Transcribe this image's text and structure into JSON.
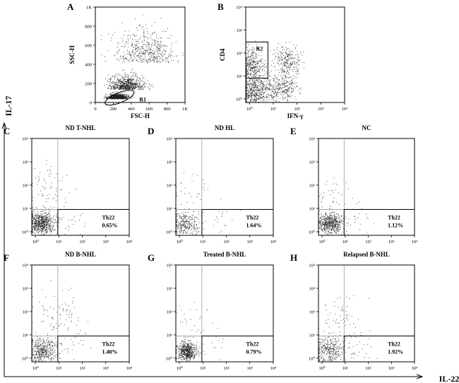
{
  "figure": {
    "outer_y_axis_label": "IL-17",
    "outer_x_axis_label": "IL-22"
  },
  "chart_data": [
    {
      "id": "A",
      "panel_letter": "A",
      "type": "scatter",
      "title": "",
      "xlabel": "FSC-H",
      "ylabel": "SSC-H",
      "xlim": [
        0,
        1000
      ],
      "ylim": [
        0,
        1000
      ],
      "scale": "linear",
      "x_ticks": [
        "0",
        "200",
        "400",
        "600",
        "800",
        "1K"
      ],
      "y_ticks": [
        "0",
        "200",
        "400",
        "600",
        "800",
        "1K"
      ],
      "gates": [
        {
          "label": "R1",
          "shape": "ellipse",
          "center": [
            270,
            50
          ]
        }
      ],
      "point_clusters": [
        {
          "center": [
            250,
            45
          ],
          "spread": [
            90,
            40
          ],
          "count": 900
        },
        {
          "center": [
            350,
            150
          ],
          "spread": [
            160,
            110
          ],
          "count": 700
        },
        {
          "center": [
            550,
            450
          ],
          "spread": [
            300,
            300
          ],
          "count": 500
        }
      ]
    },
    {
      "id": "B",
      "panel_letter": "B",
      "type": "scatter",
      "title": "",
      "xlabel": "IFN-γ",
      "ylabel": "CD4",
      "xlim": [
        0.7,
        10000
      ],
      "ylim": [
        0.7,
        10000
      ],
      "scale": "log",
      "x_ticks": [
        "10⁰",
        "10¹",
        "10²",
        "10³",
        "10⁴"
      ],
      "y_ticks": [
        "10⁰",
        "10¹",
        "10²",
        "10³",
        "10⁴"
      ],
      "gates": [
        {
          "label": "R2",
          "shape": "rect",
          "x": [
            0.7,
            6
          ],
          "y": [
            8,
            300
          ]
        }
      ],
      "point_clusters": [
        {
          "center": [
            1.3,
            25
          ],
          "spread": [
            0.25,
            0.4
          ],
          "count": 400
        },
        {
          "center": [
            1.5,
            2
          ],
          "spread": [
            0.3,
            0.35
          ],
          "count": 500
        },
        {
          "center": [
            20,
            3
          ],
          "spread": [
            0.35,
            0.3
          ],
          "count": 350
        },
        {
          "center": [
            40,
            50
          ],
          "spread": [
            0.3,
            0.3
          ],
          "count": 250
        }
      ]
    },
    {
      "id": "C",
      "panel_letter": "C",
      "type": "scatter",
      "title": "ND T-NHL",
      "xlim": [
        0.7,
        10000
      ],
      "ylim": [
        0.7,
        10000
      ],
      "scale": "log",
      "x_ticks": [
        "10⁰",
        "10¹",
        "10²",
        "10³",
        "10⁴"
      ],
      "y_ticks": [
        "10⁰",
        "10¹",
        "10²",
        "10³",
        "10⁴"
      ],
      "quadrant_lines": {
        "x": 9,
        "y": 9
      },
      "gates": [
        {
          "label": "Th22",
          "value": "0.65%",
          "shape": "rect",
          "x": [
            9,
            10000
          ],
          "y": [
            0.7,
            9
          ]
        }
      ],
      "point_clusters": [
        {
          "center": [
            1.8,
            2.5
          ],
          "spread": [
            0.28,
            0.22
          ],
          "count": 650
        },
        {
          "center": [
            3,
            60
          ],
          "spread": [
            0.4,
            0.5
          ],
          "count": 70
        },
        {
          "center": [
            25,
            3
          ],
          "spread": [
            0.4,
            0.35
          ],
          "count": 30
        }
      ]
    },
    {
      "id": "D",
      "panel_letter": "D",
      "type": "scatter",
      "title": "ND HL",
      "xlim": [
        0.7,
        10000
      ],
      "ylim": [
        0.7,
        10000
      ],
      "scale": "log",
      "x_ticks": [
        "10⁰",
        "10¹",
        "10²",
        "10³",
        "10⁴"
      ],
      "y_ticks": [
        "10⁰",
        "10¹",
        "10²",
        "10³",
        "10⁴"
      ],
      "quadrant_lines": {
        "x": 9,
        "y": 9
      },
      "gates": [
        {
          "label": "Th22",
          "value": "1.64%",
          "shape": "rect",
          "x": [
            9,
            10000
          ],
          "y": [
            0.7,
            9
          ]
        }
      ],
      "point_clusters": [
        {
          "center": [
            1.8,
            2
          ],
          "spread": [
            0.3,
            0.28
          ],
          "count": 300
        },
        {
          "center": [
            3,
            60
          ],
          "spread": [
            0.45,
            0.5
          ],
          "count": 30
        },
        {
          "center": [
            30,
            3
          ],
          "spread": [
            0.45,
            0.35
          ],
          "count": 25
        }
      ]
    },
    {
      "id": "E",
      "panel_letter": "E",
      "type": "scatter",
      "title": "NC",
      "xlim": [
        0.7,
        10000
      ],
      "ylim": [
        0.7,
        10000
      ],
      "scale": "log",
      "x_ticks": [
        "10⁰",
        "10¹",
        "10²",
        "10³",
        "10⁴"
      ],
      "y_ticks": [
        "10⁰",
        "10¹",
        "10²",
        "10³",
        "10⁴"
      ],
      "quadrant_lines": {
        "x": 9,
        "y": 9
      },
      "gates": [
        {
          "label": "Th22",
          "value": "1.12%",
          "shape": "rect",
          "x": [
            9,
            10000
          ],
          "y": [
            0.7,
            9
          ]
        }
      ],
      "point_clusters": [
        {
          "center": [
            2.2,
            2.3
          ],
          "spread": [
            0.25,
            0.22
          ],
          "count": 550
        },
        {
          "center": [
            3,
            40
          ],
          "spread": [
            0.4,
            0.45
          ],
          "count": 40
        },
        {
          "center": [
            30,
            3
          ],
          "spread": [
            0.45,
            0.35
          ],
          "count": 25
        }
      ]
    },
    {
      "id": "F",
      "panel_letter": "F",
      "type": "scatter",
      "title": "ND B-NHL",
      "xlim": [
        0.7,
        10000
      ],
      "ylim": [
        0.7,
        10000
      ],
      "scale": "log",
      "x_ticks": [
        "10⁰",
        "10¹",
        "10²",
        "10³",
        "10⁴"
      ],
      "y_ticks": [
        "10⁰",
        "10¹",
        "10²",
        "10³",
        "10⁴"
      ],
      "quadrant_lines": {
        "x": 9,
        "y": 9
      },
      "gates": [
        {
          "label": "Th22",
          "value": "1.40%",
          "shape": "rect",
          "x": [
            9,
            10000
          ],
          "y": [
            0.7,
            9
          ]
        }
      ],
      "point_clusters": [
        {
          "center": [
            2,
            2
          ],
          "spread": [
            0.32,
            0.3
          ],
          "count": 450
        },
        {
          "center": [
            8,
            80
          ],
          "spread": [
            0.55,
            0.45
          ],
          "count": 80
        },
        {
          "center": [
            30,
            3
          ],
          "spread": [
            0.45,
            0.35
          ],
          "count": 30
        }
      ]
    },
    {
      "id": "G",
      "panel_letter": "G",
      "type": "scatter",
      "title": "Treated B-NHL",
      "xlim": [
        0.7,
        10000
      ],
      "ylim": [
        0.7,
        10000
      ],
      "scale": "log",
      "x_ticks": [
        "10⁰",
        "10¹",
        "10²",
        "10³",
        "10⁴"
      ],
      "y_ticks": [
        "10⁰",
        "10¹",
        "10²",
        "10³",
        "10⁴"
      ],
      "quadrant_lines": {
        "x": 9,
        "y": 9
      },
      "gates": [
        {
          "label": "Th22",
          "value": "0.79%",
          "shape": "rect",
          "x": [
            9,
            10000
          ],
          "y": [
            0.7,
            9
          ]
        }
      ],
      "point_clusters": [
        {
          "center": [
            2,
            2
          ],
          "spread": [
            0.2,
            0.2
          ],
          "count": 550
        },
        {
          "center": [
            3,
            40
          ],
          "spread": [
            0.35,
            0.45
          ],
          "count": 25
        },
        {
          "center": [
            30,
            3
          ],
          "spread": [
            0.4,
            0.35
          ],
          "count": 15
        }
      ]
    },
    {
      "id": "H",
      "panel_letter": "H",
      "type": "scatter",
      "title": "Relapsed B-NHL",
      "xlim": [
        0.7,
        10000
      ],
      "ylim": [
        0.7,
        10000
      ],
      "scale": "log",
      "x_ticks": [
        "10⁰",
        "10¹",
        "10²",
        "10³",
        "10⁴"
      ],
      "y_ticks": [
        "10⁰",
        "10¹",
        "10²",
        "10³",
        "10⁴"
      ],
      "quadrant_lines": {
        "x": 9,
        "y": 9
      },
      "gates": [
        {
          "label": "Th22",
          "value": "1.92%",
          "shape": "rect",
          "x": [
            9,
            10000
          ],
          "y": [
            0.7,
            9
          ]
        }
      ],
      "point_clusters": [
        {
          "center": [
            2,
            2.2
          ],
          "spread": [
            0.32,
            0.3
          ],
          "count": 350
        },
        {
          "center": [
            5,
            80
          ],
          "spread": [
            0.5,
            0.45
          ],
          "count": 60
        },
        {
          "center": [
            30,
            3
          ],
          "spread": [
            0.45,
            0.35
          ],
          "count": 35
        }
      ]
    }
  ]
}
